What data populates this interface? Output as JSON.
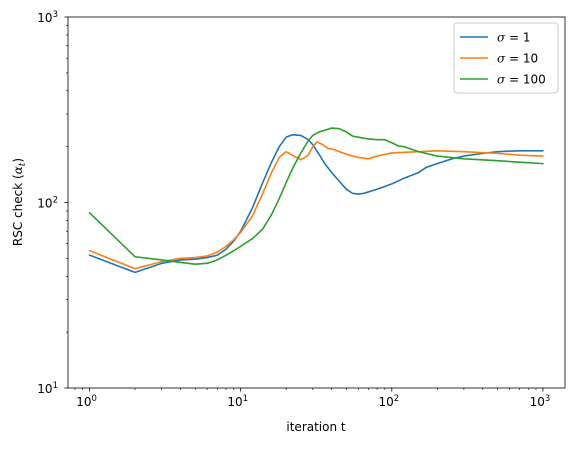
{
  "chart_data": {
    "type": "line",
    "xlabel": "iteration t",
    "ylabel": "RSC check (α_t)",
    "ylabel_main": "RSC check (",
    "ylabel_var": "α",
    "ylabel_sub": "t",
    "ylabel_close": ")",
    "xscale": "log",
    "yscale": "log",
    "xlim": [
      0.72,
      1400
    ],
    "ylim": [
      10,
      1000
    ],
    "grid": false,
    "legend_position": "top-right",
    "x_ticks": [
      {
        "value": 1,
        "base": "10",
        "exp": "0"
      },
      {
        "value": 10,
        "base": "10",
        "exp": "1"
      },
      {
        "value": 100,
        "base": "10",
        "exp": "2"
      },
      {
        "value": 1000,
        "base": "10",
        "exp": "3"
      }
    ],
    "y_ticks": [
      {
        "value": 10,
        "base": "10",
        "exp": "1"
      },
      {
        "value": 100,
        "base": "10",
        "exp": "2"
      },
      {
        "value": 1000,
        "base": "10",
        "exp": "3"
      }
    ],
    "series": [
      {
        "name": "σ = 1",
        "legend_var": "σ",
        "legend_value": " = 1",
        "color": "#1f77b4",
        "x": [
          1,
          2,
          3,
          4,
          5,
          6,
          7,
          8,
          9,
          10,
          12,
          14,
          16,
          18,
          20,
          22,
          25,
          28,
          30,
          33,
          36,
          40,
          45,
          50,
          55,
          60,
          65,
          70,
          80,
          90,
          100,
          120,
          150,
          170,
          200,
          250,
          300,
          400,
          500,
          700,
          1000
        ],
        "y": [
          52,
          42,
          47,
          49,
          49.5,
          50.5,
          52,
          56,
          62,
          70,
          94,
          128,
          165,
          200,
          225,
          232,
          230,
          218,
          205,
          182,
          162,
          145,
          130,
          118,
          112,
          111,
          112,
          114,
          118,
          122,
          126,
          135,
          145,
          155,
          162,
          172,
          178,
          184,
          188,
          190,
          190
        ]
      },
      {
        "name": "σ = 10",
        "legend_var": "σ",
        "legend_value": " = 10",
        "color": "#ff7f0e",
        "x": [
          1,
          2,
          3,
          4,
          5,
          6,
          7,
          8,
          9,
          10,
          12,
          14,
          16,
          18,
          20,
          22,
          25,
          28,
          30,
          32,
          35,
          38,
          40,
          45,
          50,
          60,
          70,
          80,
          100,
          150,
          200,
          300,
          500,
          700,
          1000
        ],
        "y": [
          55,
          44,
          48,
          50,
          50.5,
          51.5,
          54,
          58,
          63,
          69,
          85,
          112,
          145,
          175,
          188,
          180,
          170,
          180,
          200,
          212,
          205,
          195,
          195,
          188,
          182,
          175,
          172,
          178,
          185,
          188,
          190,
          188,
          184,
          180,
          178
        ]
      },
      {
        "name": "σ = 100",
        "legend_var": "σ",
        "legend_value": " = 100",
        "color": "#2ca02c",
        "x": [
          1,
          2,
          3,
          4,
          5,
          6,
          7,
          8,
          9,
          10,
          12,
          14,
          16,
          18,
          20,
          22,
          25,
          28,
          30,
          33,
          36,
          40,
          45,
          50,
          55,
          60,
          70,
          80,
          90,
          100,
          110,
          120,
          150,
          200,
          300,
          500,
          700,
          1000
        ],
        "y": [
          88,
          51,
          49,
          47.5,
          46.5,
          47,
          49,
          52,
          55,
          58,
          64,
          72,
          86,
          105,
          128,
          152,
          185,
          215,
          230,
          240,
          245,
          252,
          250,
          240,
          228,
          225,
          220,
          218,
          218,
          210,
          202,
          200,
          188,
          178,
          172,
          168,
          165,
          162
        ]
      }
    ]
  }
}
